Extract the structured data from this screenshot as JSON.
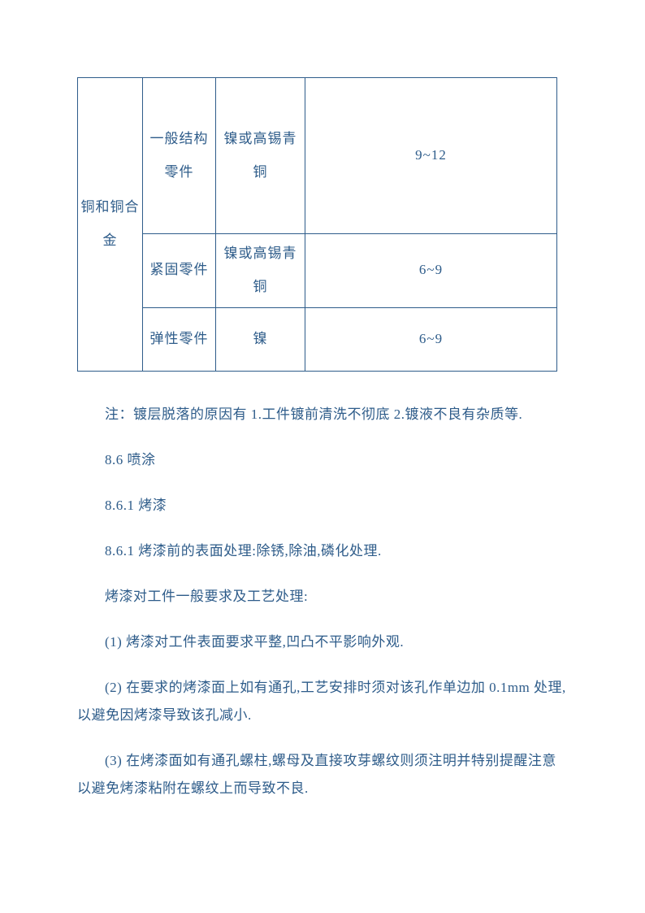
{
  "table": {
    "col1_text": "铜和铜合金",
    "rows": [
      {
        "type": "一般结构零件",
        "middle": "镍或高锡青铜",
        "range": "9~12"
      },
      {
        "type": "紧固零件",
        "middle": "镍或高锡青铜",
        "range": "6~9"
      },
      {
        "type": "弹性零件",
        "middle": "镍",
        "range": "6~9"
      }
    ]
  },
  "paragraphs": [
    "注：镀层脱落的原因有 1.工件镀前清洗不彻底 2.镀液不良有杂质等.",
    "8.6 喷涂",
    "8.6.1 烤漆",
    "8.6.1 烤漆前的表面处理:除锈,除油,磷化处理.",
    "烤漆对工件一般要求及工艺处理:",
    "(1) 烤漆对工件表面要求平整,凹凸不平影响外观.",
    "(2) 在要求的烤漆面上如有通孔,工艺安排时须对该孔作单边加 0.1mm 处理,以避免因烤漆导致该孔减小.",
    "(3) 在烤漆面如有通孔螺柱,螺母及直接攻芽螺纹则须注明并特别提醒注意以避免烤漆粘附在螺纹上而导致不良."
  ]
}
